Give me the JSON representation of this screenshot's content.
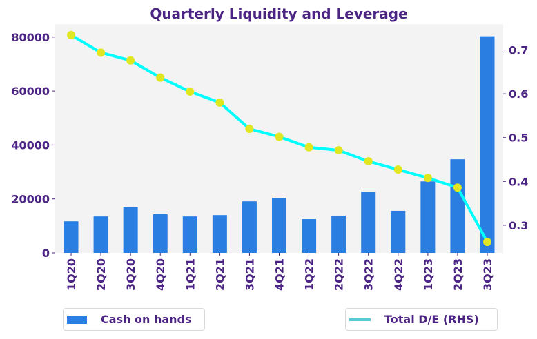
{
  "chart_data": {
    "type": "bar+line",
    "title": "Quarterly Liquidity and Leverage",
    "categories": [
      "1Q20",
      "2Q20",
      "3Q20",
      "4Q20",
      "1Q21",
      "2Q21",
      "3Q21",
      "4Q21",
      "1Q22",
      "2Q22",
      "3Q22",
      "4Q22",
      "1Q23",
      "2Q23",
      "3Q23"
    ],
    "series": [
      {
        "name": "Cash on hands",
        "type": "bar",
        "axis": "left",
        "color": "#2a7de1",
        "values": [
          11700,
          13500,
          17100,
          14300,
          13500,
          14000,
          19100,
          20400,
          12500,
          13800,
          22700,
          15600,
          26500,
          34700,
          80300
        ]
      },
      {
        "name": "Total D/E (RHS)",
        "type": "line",
        "axis": "right",
        "color": "#00ffff",
        "legend_color": "#5bc8d8",
        "marker_color": "#e0e620",
        "values": [
          0.734,
          0.694,
          0.676,
          0.637,
          0.605,
          0.58,
          0.52,
          0.502,
          0.478,
          0.471,
          0.446,
          0.427,
          0.408,
          0.386,
          0.262
        ]
      }
    ],
    "left_axis": {
      "ylim": [
        0,
        84800
      ],
      "ticks": [
        0,
        20000,
        40000,
        60000,
        80000
      ],
      "tick_labels": [
        "0",
        "20000",
        "40000",
        "60000",
        "80000"
      ]
    },
    "right_axis": {
      "ylim": [
        0.237,
        0.759
      ],
      "ticks": [
        0.3,
        0.4,
        0.5,
        0.6,
        0.7
      ],
      "tick_labels": [
        "0.3",
        "0.4",
        "0.5",
        "0.6",
        "0.7"
      ]
    },
    "xlabel": "",
    "ylabel": "",
    "grid": false,
    "plot_background": "#f3f3f3",
    "text_color": "#4b2484",
    "legend": [
      {
        "label": "Cash on hands",
        "placement": "bottom-left"
      },
      {
        "label": "Total D/E (RHS)",
        "placement": "bottom-right"
      }
    ]
  }
}
